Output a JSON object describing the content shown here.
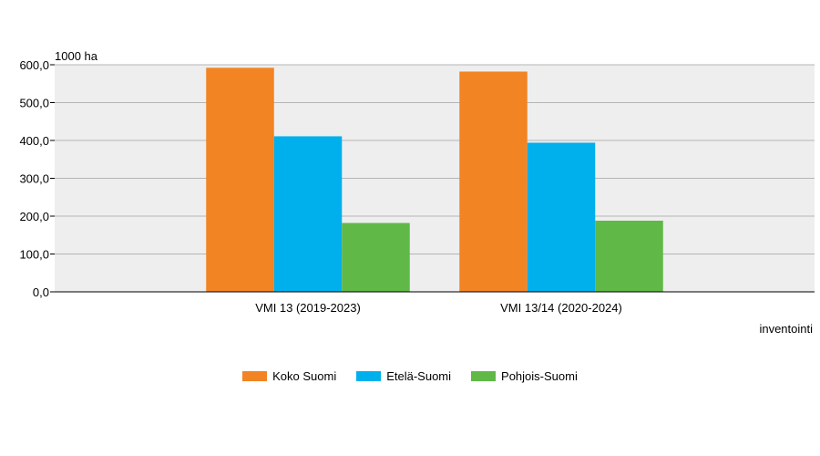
{
  "chart_data": {
    "type": "bar",
    "ylabel": "1000 ha",
    "xlabel": "inventointi",
    "ylim": [
      0,
      600
    ],
    "yticks": [
      "0,0",
      "100,0",
      "200,0",
      "300,0",
      "400,0",
      "500,0",
      "600,0"
    ],
    "categories": [
      "VMI 13 (2019-2023)",
      "VMI 13/14 (2020-2024)"
    ],
    "series": [
      {
        "name": "Koko Suomi",
        "color": "#f28423",
        "values": [
          592,
          582
        ]
      },
      {
        "name": "Etelä-Suomi",
        "color": "#00b0ec",
        "values": [
          411,
          394
        ]
      },
      {
        "name": "Pohjois-Suomi",
        "color": "#60b947",
        "values": [
          182,
          188
        ]
      }
    ],
    "grid": true,
    "legend_position": "bottom"
  }
}
